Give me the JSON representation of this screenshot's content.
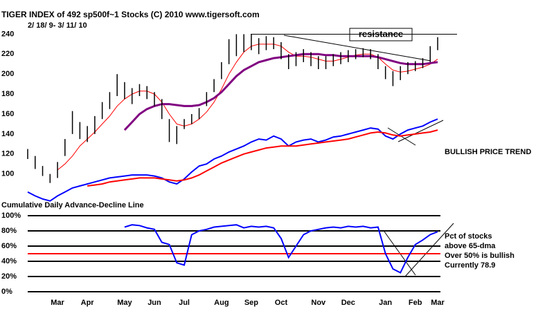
{
  "chart_data": [
    {
      "type": "hilo",
      "title": "TIGER INDEX of  492 sp500f~1 Stocks  (C) 2010  www.tigersoft.com",
      "subtitle": "2/ 18/ 9- 3/ 11/ 10",
      "color": "#000000",
      "high": [
        125,
        118,
        108,
        100,
        112,
        135,
        163,
        152,
        148,
        158,
        172,
        182,
        200,
        192,
        186,
        190,
        188,
        182,
        175,
        155,
        148,
        155,
        160,
        166,
        182,
        195,
        212,
        235,
        240,
        240,
        240,
        236,
        238,
        237,
        232,
        220,
        222,
        225,
        222,
        218,
        218,
        220,
        222,
        224,
        225,
        226,
        225,
        220,
        208,
        203,
        208,
        212,
        213,
        216,
        228,
        237
      ],
      "low": [
        115,
        105,
        98,
        91,
        96,
        118,
        140,
        135,
        132,
        140,
        155,
        165,
        178,
        175,
        170,
        178,
        175,
        168,
        155,
        132,
        130,
        145,
        150,
        155,
        168,
        182,
        195,
        210,
        218,
        222,
        224,
        220,
        224,
        225,
        215,
        205,
        208,
        212,
        208,
        205,
        205,
        208,
        210,
        212,
        215,
        217,
        215,
        205,
        195,
        188,
        194,
        200,
        203,
        206,
        212,
        224
      ],
      "ylim": [
        70,
        250
      ],
      "yticks": [
        100,
        120,
        140,
        160,
        180,
        200,
        220,
        240
      ],
      "series": [
        {
          "color": "#ff0000",
          "width": 1,
          "values": [
            null,
            null,
            null,
            null,
            104,
            110,
            118,
            128,
            135,
            142,
            150,
            158,
            168,
            175,
            180,
            183,
            183,
            180,
            172,
            160,
            150,
            148,
            150,
            155,
            162,
            172,
            185,
            200,
            212,
            222,
            228,
            230,
            230,
            230,
            228,
            222,
            218,
            218,
            217,
            215,
            213,
            213,
            215,
            217,
            219,
            220,
            220,
            217,
            210,
            204,
            202,
            203,
            205,
            207,
            210,
            215
          ]
        },
        {
          "color": "#800080",
          "width": 3,
          "values": [
            null,
            null,
            null,
            null,
            null,
            null,
            null,
            null,
            null,
            null,
            null,
            null,
            null,
            144,
            152,
            160,
            165,
            168,
            170,
            170,
            169,
            168,
            168,
            169,
            172,
            176,
            182,
            190,
            198,
            204,
            208,
            212,
            214,
            216,
            217,
            218,
            219,
            220,
            220,
            220,
            219,
            219,
            218,
            218,
            218,
            218,
            218,
            217,
            215,
            213,
            211,
            210,
            210,
            210,
            211,
            212
          ]
        },
        {
          "color": "#0000ff",
          "width": 2,
          "values": [
            82,
            78,
            75,
            73,
            78,
            82,
            86,
            88,
            90,
            92,
            94,
            96,
            97,
            98,
            99,
            99,
            99,
            98,
            96,
            92,
            90,
            95,
            102,
            108,
            110,
            115,
            118,
            122,
            125,
            128,
            132,
            135,
            134,
            138,
            135,
            128,
            132,
            134,
            135,
            132,
            134,
            137,
            138,
            140,
            142,
            144,
            146,
            145,
            138,
            135,
            140,
            144,
            146,
            148,
            152,
            155
          ]
        },
        {
          "color": "#ff0000",
          "width": 2,
          "values": [
            null,
            null,
            null,
            null,
            null,
            null,
            null,
            null,
            88,
            89,
            90,
            92,
            93,
            94,
            95,
            96,
            96,
            96,
            95,
            94,
            93,
            94,
            96,
            99,
            103,
            107,
            111,
            114,
            117,
            120,
            122,
            124,
            126,
            127,
            128,
            128,
            128,
            129,
            130,
            131,
            132,
            133,
            134,
            135,
            137,
            139,
            141,
            142,
            141,
            139,
            138,
            139,
            140,
            141,
            142,
            144
          ]
        }
      ],
      "resistance": {
        "label": "resistance",
        "value": 240
      },
      "annotations": [
        "BULLISH PRICE TREND",
        "Cumulative Daily Advance-Decline Line"
      ]
    },
    {
      "type": "line",
      "categories": [
        null,
        null,
        null,
        null,
        "Mar",
        null,
        null,
        null,
        "Apr",
        null,
        null,
        null,
        null,
        "May",
        null,
        null,
        null,
        "Jun",
        null,
        null,
        null,
        "Jul",
        null,
        null,
        null,
        null,
        "Aug",
        null,
        null,
        null,
        "Sep",
        null,
        null,
        null,
        "Oct",
        null,
        null,
        null,
        null,
        "Nov",
        null,
        null,
        null,
        "Dec",
        null,
        null,
        null,
        null,
        "Jan",
        null,
        null,
        null,
        "Feb",
        null,
        null,
        "Mar"
      ],
      "series": [
        {
          "color": "#0000ff",
          "values": [
            null,
            null,
            null,
            null,
            null,
            null,
            null,
            null,
            null,
            null,
            null,
            null,
            null,
            85,
            88,
            87,
            84,
            82,
            65,
            62,
            38,
            35,
            75,
            80,
            82,
            85,
            86,
            87,
            88,
            84,
            86,
            85,
            86,
            84,
            70,
            45,
            60,
            75,
            80,
            82,
            84,
            85,
            84,
            86,
            85,
            86,
            84,
            85,
            50,
            30,
            25,
            45,
            62,
            68,
            75,
            78.9
          ]
        }
      ],
      "ylim": [
        0,
        100
      ],
      "yticks": [
        {
          "value": 0,
          "label": "0%"
        },
        {
          "value": 20,
          "label": "20%"
        },
        {
          "value": 40,
          "label": "40%"
        },
        {
          "value": 60,
          "label": "60%"
        },
        {
          "value": 80,
          "label": "80%"
        },
        {
          "value": 100,
          "label": "100%"
        }
      ],
      "grid": true,
      "threshold": {
        "value": 50,
        "color": "#ff0000"
      },
      "annotations": [
        "Pct of stocks",
        "above 65-dma",
        "Over 50% is bullish",
        "Currently  78.9"
      ]
    }
  ]
}
